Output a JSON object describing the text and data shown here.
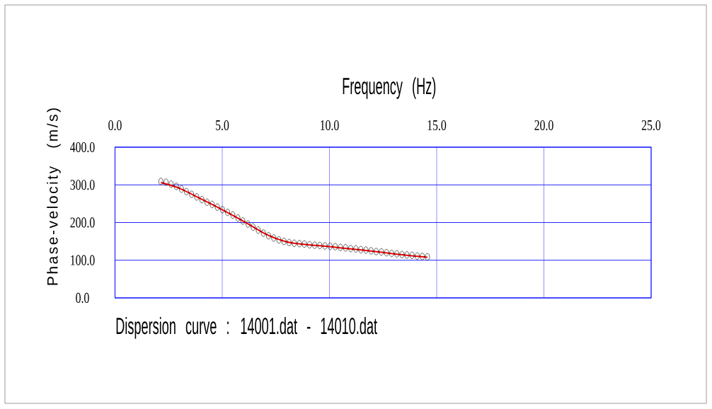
{
  "chart_data": {
    "type": "scatter",
    "xlabel": "Frequency (Hz)",
    "ylabel": "Phase-velocity (m/s)",
    "annotations": [
      "Dispersion curve : 14001.dat - 14010.dat"
    ],
    "xlim": [
      0,
      25
    ],
    "ylim": [
      0,
      400
    ],
    "xticks": [
      {
        "value": 0,
        "label": "0.0"
      },
      {
        "value": 5,
        "label": "5.0"
      },
      {
        "value": 10,
        "label": "10.0"
      },
      {
        "value": 15,
        "label": "15.0"
      },
      {
        "value": 20,
        "label": "20.0"
      },
      {
        "value": 25,
        "label": "25.0"
      }
    ],
    "yticks": [
      {
        "value": 0,
        "label": "0.0"
      },
      {
        "value": 100,
        "label": "100.0"
      },
      {
        "value": 200,
        "label": "200.0"
      },
      {
        "value": 300,
        "label": "300.0"
      },
      {
        "value": 400,
        "label": "400.0"
      }
    ],
    "grid": true,
    "marker": "circle",
    "series": [
      {
        "color": "#000000",
        "x": [
          2.14,
          2.38,
          2.62,
          2.86,
          3.1,
          3.33,
          3.57,
          3.81,
          4.05,
          4.29,
          4.53,
          4.77,
          5.01,
          5.25,
          5.49,
          5.73,
          5.96,
          6.2,
          6.44,
          6.68,
          6.92,
          7.16,
          7.4,
          7.64,
          7.88,
          8.12,
          8.36,
          8.6,
          8.83,
          9.07,
          9.31,
          9.55,
          9.79,
          10.03,
          10.27,
          10.51,
          10.75,
          10.99,
          11.23,
          11.46,
          11.7,
          11.94,
          12.18,
          12.42,
          12.66,
          12.9,
          13.14,
          13.38,
          13.61,
          13.85,
          14.09,
          14.33,
          14.57
        ],
        "values": [
          309,
          307,
          302,
          296,
          289,
          282,
          275,
          268,
          261,
          254,
          248,
          241,
          234,
          227,
          220,
          212,
          204,
          196,
          188,
          180,
          172,
          165,
          159,
          154,
          150,
          147,
          145,
          144,
          143,
          141,
          140,
          139,
          138,
          137,
          136,
          134,
          133,
          131,
          130,
          128,
          127,
          125,
          123,
          122,
          120,
          118,
          117,
          115,
          114,
          113,
          111,
          110,
          109
        ]
      },
      {
        "type": "line",
        "color": "#ff0000",
        "marker": "none",
        "line_style": "solid",
        "x": [
          2.14,
          3.0,
          4.0,
          5.0,
          6.0,
          7.0,
          7.5,
          8.0,
          8.5,
          9.0,
          10.0,
          11.0,
          12.0,
          13.0,
          14.0,
          14.57
        ],
        "values": [
          306,
          291,
          263,
          234,
          203,
          170,
          158,
          149,
          144,
          141,
          136,
          130,
          124,
          117,
          111,
          108
        ]
      }
    ]
  }
}
